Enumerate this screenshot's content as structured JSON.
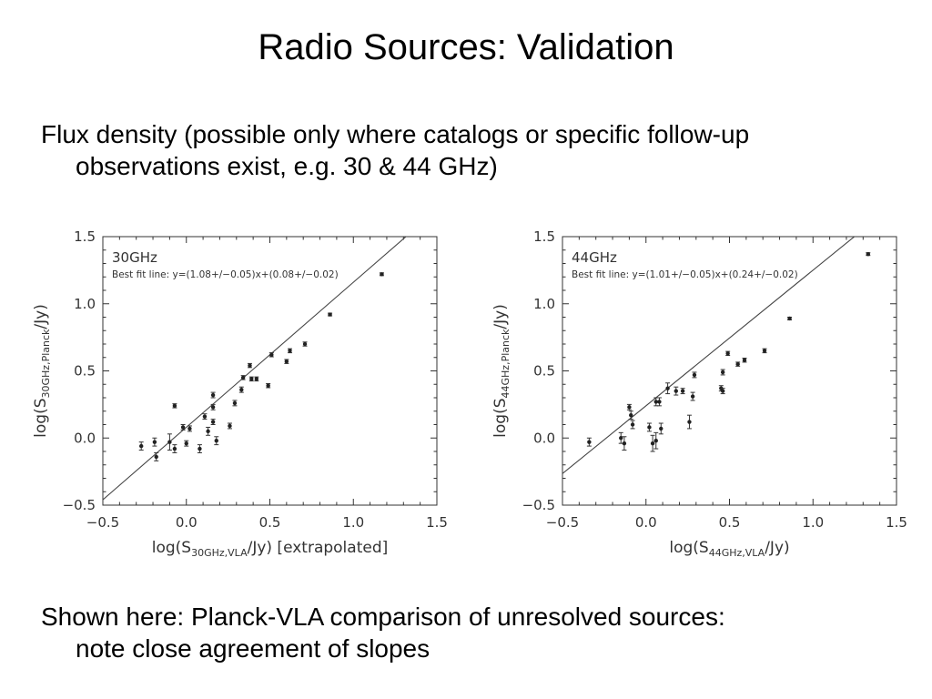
{
  "slide": {
    "title": "Radio Sources: Validation",
    "bullet1_line1": "Flux density (possible only where catalogs or specific follow-up",
    "bullet1_line2": "observations exist, e.g. 30 & 44 GHz)",
    "bullet2_line1": "Shown here: Planck-VLA comparison of unresolved sources:",
    "bullet2_line2": "note close agreement of slopes"
  },
  "chart_data": [
    {
      "type": "scatter",
      "panel_label": "30GHz",
      "fit_label": "Best fit line: y=(1.08+/−0.05)x+(0.08+/−0.02)",
      "fit": {
        "slope": 1.08,
        "intercept": 0.08
      },
      "xlim": [
        -0.5,
        1.5
      ],
      "ylim": [
        -0.5,
        1.5
      ],
      "xticks": [
        -0.5,
        0.0,
        0.5,
        1.0,
        1.5
      ],
      "yticks": [
        -0.5,
        0.0,
        0.5,
        1.0,
        1.5
      ],
      "xtick_labels": [
        "−0.5",
        "0.0",
        "0.5",
        "1.0",
        "1.5"
      ],
      "ytick_labels": [
        "−0.5",
        "0.0",
        "0.5",
        "1.0",
        "1.5"
      ],
      "xlabel_pre": "log(S",
      "xlabel_sub": "30GHz,VLA",
      "xlabel_post": "/Jy)  [extrapolated]",
      "ylabel_pre": "log(S",
      "ylabel_sub": "30GHz,Planck",
      "ylabel_post": "/Jy)",
      "points": [
        {
          "x": -0.27,
          "y": -0.06,
          "err": 0.03
        },
        {
          "x": -0.19,
          "y": -0.03,
          "err": 0.03
        },
        {
          "x": -0.18,
          "y": -0.14,
          "err": 0.03
        },
        {
          "x": -0.1,
          "y": -0.03,
          "err": 0.06
        },
        {
          "x": -0.07,
          "y": 0.24,
          "err": 0.015
        },
        {
          "x": -0.07,
          "y": -0.08,
          "err": 0.03
        },
        {
          "x": -0.02,
          "y": 0.08,
          "err": 0.02
        },
        {
          "x": 0.0,
          "y": -0.04,
          "err": 0.02
        },
        {
          "x": 0.02,
          "y": 0.07,
          "err": 0.02
        },
        {
          "x": 0.08,
          "y": -0.08,
          "err": 0.03
        },
        {
          "x": 0.11,
          "y": 0.16,
          "err": 0.02
        },
        {
          "x": 0.13,
          "y": 0.05,
          "err": 0.03
        },
        {
          "x": 0.16,
          "y": 0.12,
          "err": 0.02
        },
        {
          "x": 0.16,
          "y": 0.23,
          "err": 0.02
        },
        {
          "x": 0.16,
          "y": 0.32,
          "err": 0.02
        },
        {
          "x": 0.18,
          "y": -0.02,
          "err": 0.03
        },
        {
          "x": 0.26,
          "y": 0.09,
          "err": 0.02
        },
        {
          "x": 0.29,
          "y": 0.26,
          "err": 0.02
        },
        {
          "x": 0.33,
          "y": 0.36,
          "err": 0.02
        },
        {
          "x": 0.34,
          "y": 0.45,
          "err": 0.015
        },
        {
          "x": 0.38,
          "y": 0.54,
          "err": 0.015
        },
        {
          "x": 0.39,
          "y": 0.44,
          "err": 0.015
        },
        {
          "x": 0.42,
          "y": 0.44,
          "err": 0.015
        },
        {
          "x": 0.49,
          "y": 0.39,
          "err": 0.015
        },
        {
          "x": 0.51,
          "y": 0.62,
          "err": 0.015
        },
        {
          "x": 0.6,
          "y": 0.57,
          "err": 0.015
        },
        {
          "x": 0.62,
          "y": 0.65,
          "err": 0.015
        },
        {
          "x": 0.71,
          "y": 0.7,
          "err": 0.015
        },
        {
          "x": 0.86,
          "y": 0.92,
          "err": 0.01
        },
        {
          "x": 1.17,
          "y": 1.22,
          "err": 0.01
        }
      ]
    },
    {
      "type": "scatter",
      "panel_label": "44GHz",
      "fit_label": "Best fit line: y=(1.01+/−0.05)x+(0.24+/−0.02)",
      "fit": {
        "slope": 1.01,
        "intercept": 0.24
      },
      "xlim": [
        -0.5,
        1.5
      ],
      "ylim": [
        -0.5,
        1.5
      ],
      "xticks": [
        -0.5,
        0.0,
        0.5,
        1.0,
        1.5
      ],
      "yticks": [
        -0.5,
        0.0,
        0.5,
        1.0,
        1.5
      ],
      "xtick_labels": [
        "−0.5",
        "0.0",
        "0.5",
        "1.0",
        "1.5"
      ],
      "ytick_labels": [
        "−0.5",
        "0.0",
        "0.5",
        "1.0",
        "1.5"
      ],
      "xlabel_pre": "log(S",
      "xlabel_sub": "44GHz,VLA",
      "xlabel_post": "/Jy)",
      "ylabel_pre": "log(S",
      "ylabel_sub": "44GHz,Planck",
      "ylabel_post": "/Jy)",
      "points": [
        {
          "x": -0.34,
          "y": -0.03,
          "err": 0.03
        },
        {
          "x": -0.15,
          "y": 0.0,
          "err": 0.04
        },
        {
          "x": -0.13,
          "y": -0.04,
          "err": 0.05
        },
        {
          "x": -0.1,
          "y": 0.23,
          "err": 0.02
        },
        {
          "x": -0.09,
          "y": 0.17,
          "err": 0.03
        },
        {
          "x": -0.08,
          "y": 0.1,
          "err": 0.03
        },
        {
          "x": 0.02,
          "y": 0.08,
          "err": 0.03
        },
        {
          "x": 0.04,
          "y": -0.04,
          "err": 0.06
        },
        {
          "x": 0.06,
          "y": 0.27,
          "err": 0.03
        },
        {
          "x": 0.06,
          "y": -0.02,
          "err": 0.06
        },
        {
          "x": 0.08,
          "y": 0.27,
          "err": 0.03
        },
        {
          "x": 0.09,
          "y": 0.07,
          "err": 0.04
        },
        {
          "x": 0.13,
          "y": 0.37,
          "err": 0.04
        },
        {
          "x": 0.18,
          "y": 0.35,
          "err": 0.03
        },
        {
          "x": 0.22,
          "y": 0.35,
          "err": 0.02
        },
        {
          "x": 0.26,
          "y": 0.12,
          "err": 0.05
        },
        {
          "x": 0.28,
          "y": 0.31,
          "err": 0.03
        },
        {
          "x": 0.29,
          "y": 0.47,
          "err": 0.02
        },
        {
          "x": 0.45,
          "y": 0.37,
          "err": 0.02
        },
        {
          "x": 0.46,
          "y": 0.35,
          "err": 0.02
        },
        {
          "x": 0.46,
          "y": 0.49,
          "err": 0.02
        },
        {
          "x": 0.49,
          "y": 0.63,
          "err": 0.015
        },
        {
          "x": 0.55,
          "y": 0.55,
          "err": 0.015
        },
        {
          "x": 0.59,
          "y": 0.58,
          "err": 0.015
        },
        {
          "x": 0.71,
          "y": 0.65,
          "err": 0.015
        },
        {
          "x": 0.86,
          "y": 0.89,
          "err": 0.01
        },
        {
          "x": 1.33,
          "y": 1.37,
          "err": 0.01
        }
      ]
    }
  ]
}
